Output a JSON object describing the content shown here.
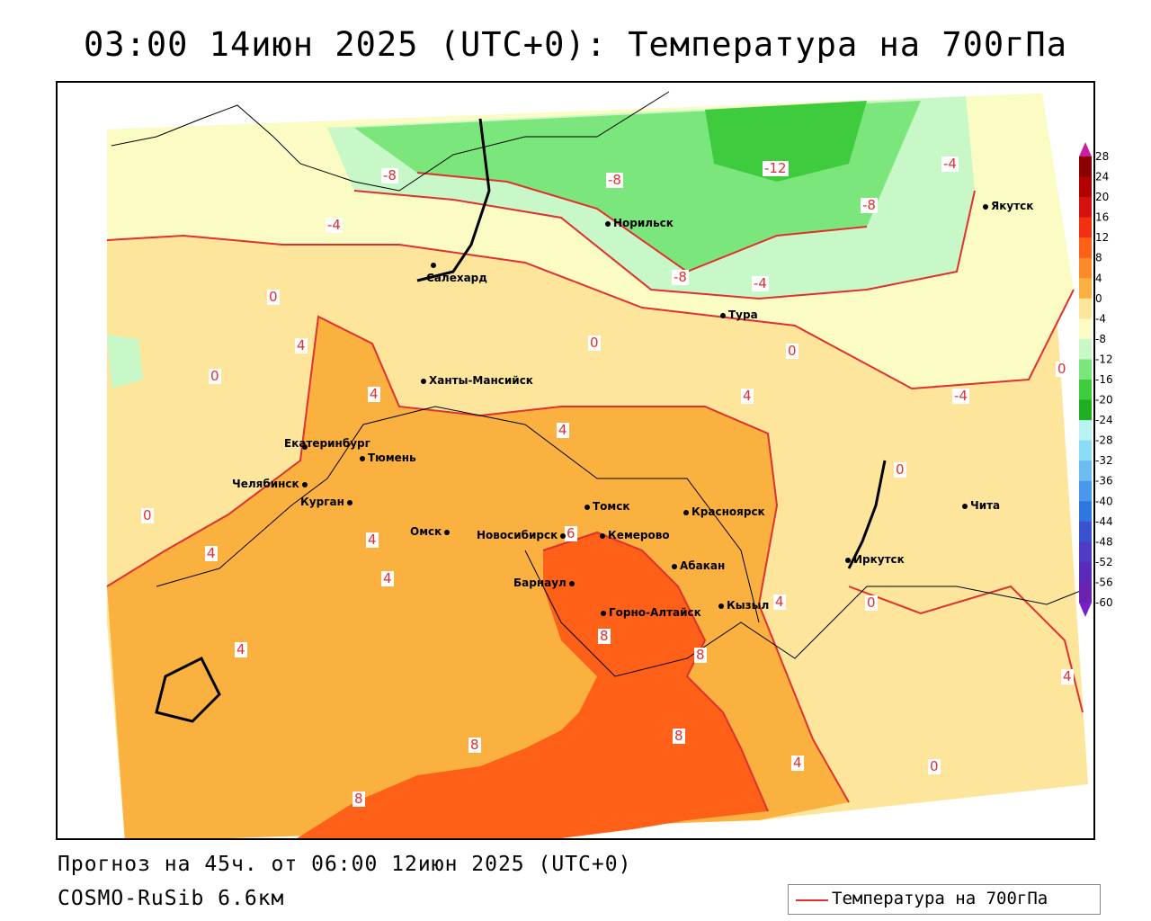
{
  "title": "03:00 14июн 2025 (UTC+0): Температура на 700гПа",
  "footer": {
    "forecast": "Прогноз на 45ч. от 06:00 12июн 2025 (UTC+0)",
    "model": "COSMO-RuSib 6.6км"
  },
  "legend": {
    "label": "Температура на 700гПа",
    "color": "#e03030"
  },
  "colorbar": {
    "ticks": [
      "28",
      "24",
      "20",
      "16",
      "12",
      "8",
      "4",
      "0",
      "-4",
      "-8",
      "-12",
      "-16",
      "-20",
      "-24",
      "-28",
      "-32",
      "-36",
      "-40",
      "-44",
      "-48",
      "-52",
      "-56",
      "-60"
    ]
  },
  "cities": [
    {
      "name": "Норильск"
    },
    {
      "name": "Якутск"
    },
    {
      "name": "Салехард"
    },
    {
      "name": "Тура"
    },
    {
      "name": "Ханты-Мансийск"
    },
    {
      "name": "Екатеринбург"
    },
    {
      "name": "Тюмень"
    },
    {
      "name": "Челябинск"
    },
    {
      "name": "Курган"
    },
    {
      "name": "Омск"
    },
    {
      "name": "Новосибирск"
    },
    {
      "name": "Томск"
    },
    {
      "name": "Кемерово"
    },
    {
      "name": "Красноярск"
    },
    {
      "name": "Абакан"
    },
    {
      "name": "Барнаул"
    },
    {
      "name": "Горно-Алтайск"
    },
    {
      "name": "Кызыл"
    },
    {
      "name": "Иркутск"
    },
    {
      "name": "Чита"
    }
  ],
  "contour_labels": [
    "-8",
    "-8",
    "-12",
    "-4",
    "-8",
    "-4",
    "-8",
    "-4",
    "0",
    "0",
    "4",
    "0",
    "4",
    "4",
    "4",
    "0",
    "-4",
    "0",
    "0",
    "4",
    "6",
    "4",
    "4",
    "0",
    "0",
    "4",
    "8",
    "8",
    "8",
    "8",
    "8",
    "4",
    "0",
    "4",
    "4"
  ],
  "colors": {
    "t_pos8": "#fe6017",
    "t_4_8": "#fbb13f",
    "t_0_4": "#fde69b",
    "t_neg4_0": "#fbfbc4",
    "t_neg8_neg4": "#c8f7c8",
    "t_neg12_neg8": "#7be67b",
    "t_neg16_neg12": "#3ecc3e",
    "isotherm": "#e03030"
  }
}
